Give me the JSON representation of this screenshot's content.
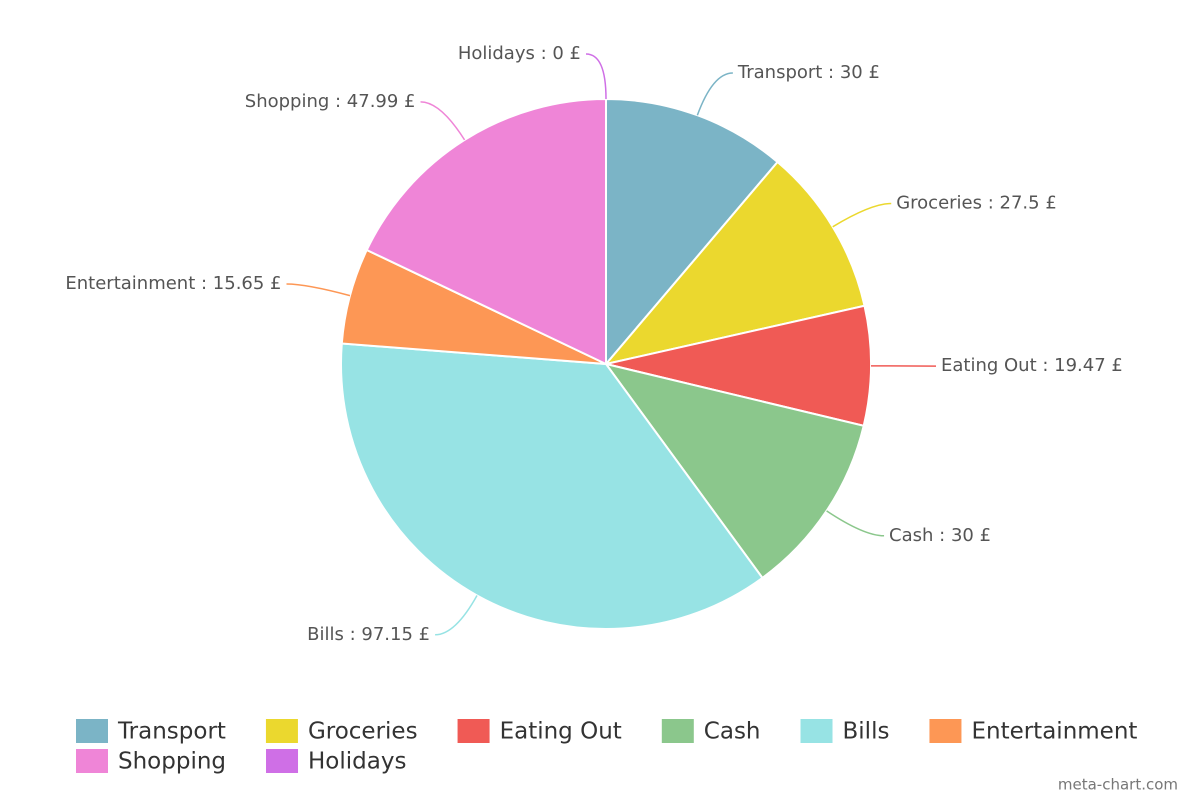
{
  "chart_data": {
    "type": "pie",
    "categories": [
      "Transport",
      "Groceries",
      "Eating Out",
      "Cash",
      "Bills",
      "Entertainment",
      "Shopping",
      "Holidays"
    ],
    "values": [
      30,
      27.5,
      19.47,
      30,
      97.15,
      15.65,
      47.99,
      0
    ],
    "value_labels": [
      "Transport : 30 £",
      "Groceries : 27.5 £",
      "Eating Out : 19.47 £",
      "Cash : 30 £",
      "Bills : 97.15 £",
      "Entertainment : 15.65 £",
      "Shopping : 47.99 £",
      "Holidays : 0 £"
    ],
    "colors": [
      "#7bb4c6",
      "#ebd82e",
      "#f05a55",
      "#8bc78c",
      "#97e3e4",
      "#fd9755",
      "#ef85d7",
      "#cf6fe6"
    ],
    "legend": "bottom",
    "credit": "meta-chart.com"
  }
}
